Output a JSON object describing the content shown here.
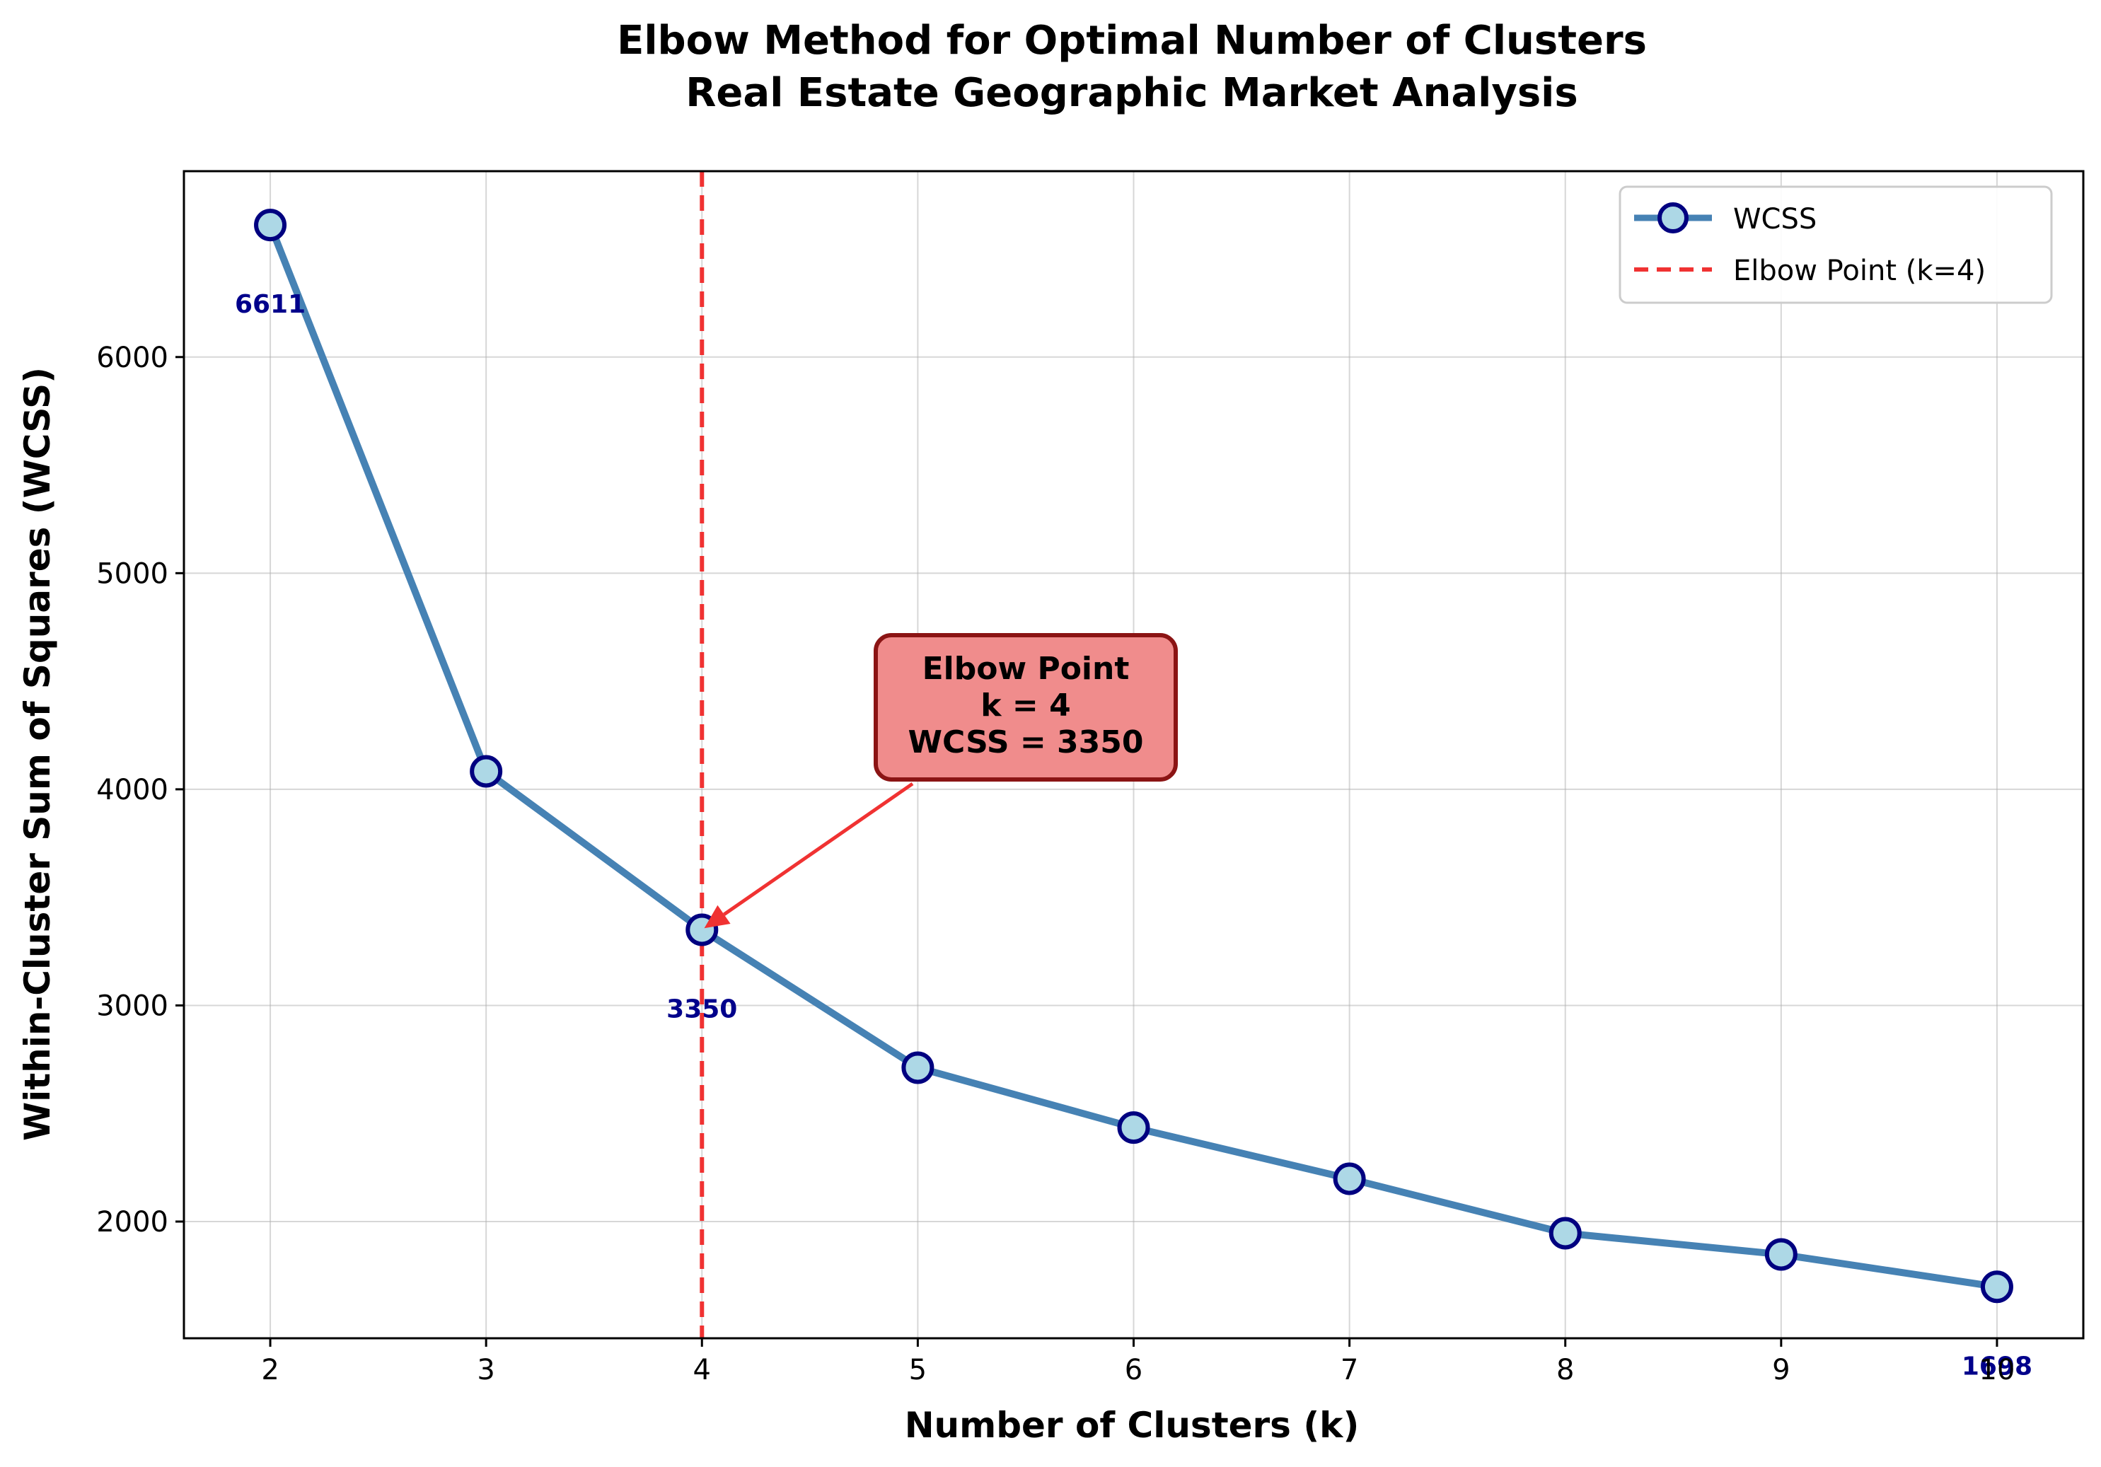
{
  "chart_data": {
    "type": "line",
    "title_line1": "Elbow Method for Optimal Number of Clusters",
    "title_line2": "Real Estate Geographic Market Analysis",
    "xlabel": "Number of Clusters (k)",
    "ylabel": "Within-Cluster Sum of Squares (WCSS)",
    "xlim": [
      1.6,
      10.4
    ],
    "ylim": [
      1460,
      6860
    ],
    "xticks": [
      2,
      3,
      4,
      5,
      6,
      7,
      8,
      9,
      10
    ],
    "yticks": [
      2000,
      3000,
      4000,
      5000,
      6000
    ],
    "grid": true,
    "legend_position": "top-right",
    "series": [
      {
        "name": "WCSS",
        "x": [
          2,
          3,
          4,
          5,
          6,
          7,
          8,
          9,
          10
        ],
        "y": [
          6611,
          4083,
          3350,
          2712,
          2435,
          2198,
          1946,
          1848,
          1698
        ],
        "color": "#4682b4",
        "marker_fill": "#add8e6",
        "marker_edge": "#000080"
      }
    ],
    "point_labels": [
      {
        "x": 2,
        "y": 6611,
        "text": "6611"
      },
      {
        "x": 4,
        "y": 3350,
        "text": "3350"
      },
      {
        "x": 10,
        "y": 1698,
        "text": "1698"
      }
    ],
    "elbow": {
      "x": 4,
      "legend_label": "Elbow Point (k=4)",
      "color": "#f03232"
    },
    "annotation": {
      "line1": "Elbow Point",
      "line2": "k = 4",
      "line3": "WCSS = 3350",
      "target_x": 4,
      "target_y": 3350,
      "fill": "#f08c8c",
      "edge": "#8b1414"
    }
  }
}
